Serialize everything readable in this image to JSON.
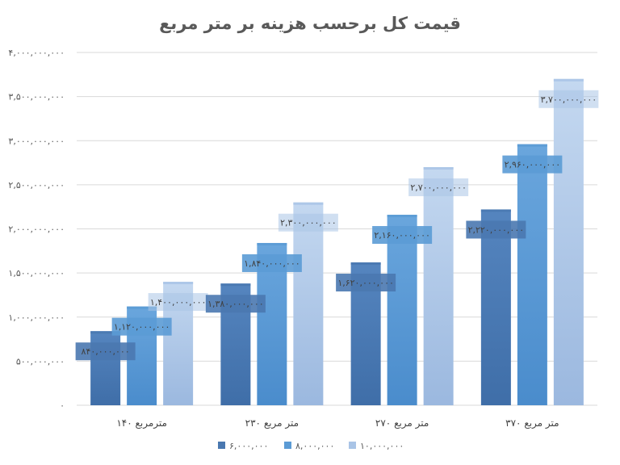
{
  "chart_data": {
    "type": "bar",
    "title": "قیمت کل برحسب هزینه بر متر مربع",
    "xlabel": "",
    "ylabel": "",
    "categories": [
      "۱۴۰ مترمربع",
      "۲۳۰ متر مربع",
      "۲۷۰ متر مربع",
      "۳۷۰ متر مربع"
    ],
    "series": [
      {
        "name": "۶,۰۰۰,۰۰۰",
        "color": "#4a78b0",
        "values": [
          840000000,
          1380000000,
          1620000000,
          2220000000
        ],
        "labels": [
          "۸۴۰,۰۰۰,۰۰۰",
          "۱,۳۸۰,۰۰۰,۰۰۰",
          "۱,۶۲۰,۰۰۰,۰۰۰",
          "۲,۲۲۰,۰۰۰,۰۰۰"
        ]
      },
      {
        "name": "۸,۰۰۰,۰۰۰",
        "color": "#5b9bd5",
        "values": [
          1120000000,
          1840000000,
          2160000000,
          2960000000
        ],
        "labels": [
          "۱,۱۲۰,۰۰۰,۰۰۰",
          "۱,۸۴۰,۰۰۰,۰۰۰",
          "۲,۱۶۰,۰۰۰,۰۰۰",
          "۲,۹۶۰,۰۰۰,۰۰۰"
        ]
      },
      {
        "name": "۱۰,۰۰۰,۰۰۰",
        "color": "#a9c4e6",
        "values": [
          1400000000,
          2300000000,
          2700000000,
          3700000000
        ],
        "labels": [
          "۱,۴۰۰,۰۰۰,۰۰۰",
          "۲,۳۰۰,۰۰۰,۰۰۰",
          "۲,۷۰۰,۰۰۰,۰۰۰",
          "۳,۷۰۰,۰۰۰,۰۰۰"
        ]
      }
    ],
    "ylim": [
      0,
      4000000000
    ],
    "yticks": [
      0,
      500000000,
      1000000000,
      1500000000,
      2000000000,
      2500000000,
      3000000000,
      3500000000,
      4000000000
    ],
    "ytick_labels": [
      "۰",
      "۵۰۰,۰۰۰,۰۰۰",
      "۱,۰۰۰,۰۰۰,۰۰۰",
      "۱,۵۰۰,۰۰۰,۰۰۰",
      "۲,۰۰۰,۰۰۰,۰۰۰",
      "۲,۵۰۰,۰۰۰,۰۰۰",
      "۳,۰۰۰,۰۰۰,۰۰۰",
      "۳,۵۰۰,۰۰۰,۰۰۰",
      "۴,۰۰۰,۰۰۰,۰۰۰"
    ],
    "grid": true,
    "legend_position": "bottom"
  }
}
